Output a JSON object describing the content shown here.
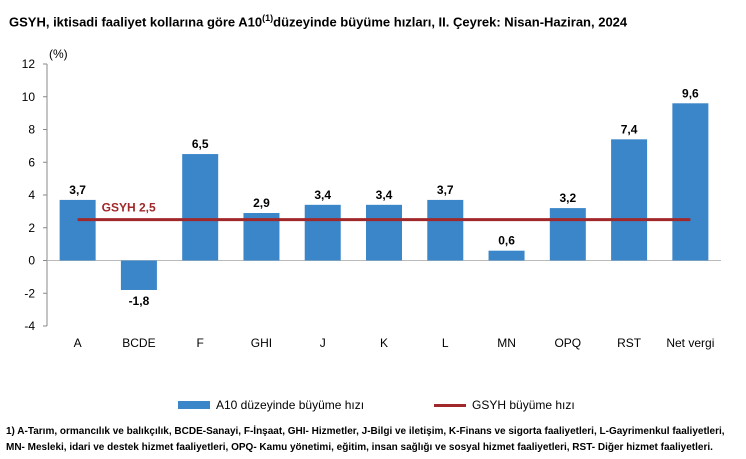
{
  "title": {
    "text": "GSYH, iktisadi faaliyet kollarına göre A10",
    "sup": "(1)",
    "text_after": "düzeyinde büyüme hızları, II. Çeyrek: Nisan-Haziran, 2024"
  },
  "chart_data": {
    "type": "bar",
    "title": "GSYH, iktisadi faaliyet kollarına göre A10(1)düzeyinde büyüme hızları, II. Çeyrek: Nisan-Haziran, 2024",
    "ylabel": "(%)",
    "ylim": [
      -4,
      12
    ],
    "yticks": [
      -4,
      -2,
      0,
      2,
      4,
      6,
      8,
      10,
      12
    ],
    "categories": [
      "A",
      "BCDE",
      "F",
      "GHI",
      "J",
      "K",
      "L",
      "MN",
      "OPQ",
      "RST",
      "Net vergi"
    ],
    "series": [
      {
        "name": "A10 düzeyinde büyüme hızı",
        "type": "bar",
        "values": [
          3.7,
          -1.8,
          6.5,
          2.9,
          3.4,
          3.4,
          3.7,
          0.6,
          3.2,
          7.4,
          9.6
        ],
        "labels": [
          "3,7",
          "-1,8",
          "6,5",
          "2,9",
          "3,4",
          "3,4",
          "3,7",
          "0,6",
          "3,2",
          "7,4",
          "9,6"
        ]
      },
      {
        "name": "GSYH büyüme hızı",
        "type": "line",
        "value": 2.5
      }
    ],
    "line_annotation": "GSYH 2,5",
    "grid": false,
    "legend_position": "bottom",
    "colors": {
      "bar": "#3a86c8",
      "line": "#a0282a"
    }
  },
  "legend": {
    "bar_label": "A10 düzeyinde büyüme hızı",
    "line_label": "GSYH büyüme hızı"
  },
  "footnote": {
    "line1": "1) A-Tarım, ormancılık ve balıkçılık, BCDE-Sanayi, F-İnşaat, GHI- Hizmetler, J-Bilgi ve iletişim, K-Finans ve sigorta faaliyetleri, L-Gayrimenkul faaliyetleri,",
    "line2": "MN- Mesleki, idari ve destek hizmet faaliyetleri, OPQ- Kamu yönetimi, eğitim, insan sağlığı ve sosyal hizmet faaliyetleri, RST- Diğer hizmet faaliyetleri."
  }
}
